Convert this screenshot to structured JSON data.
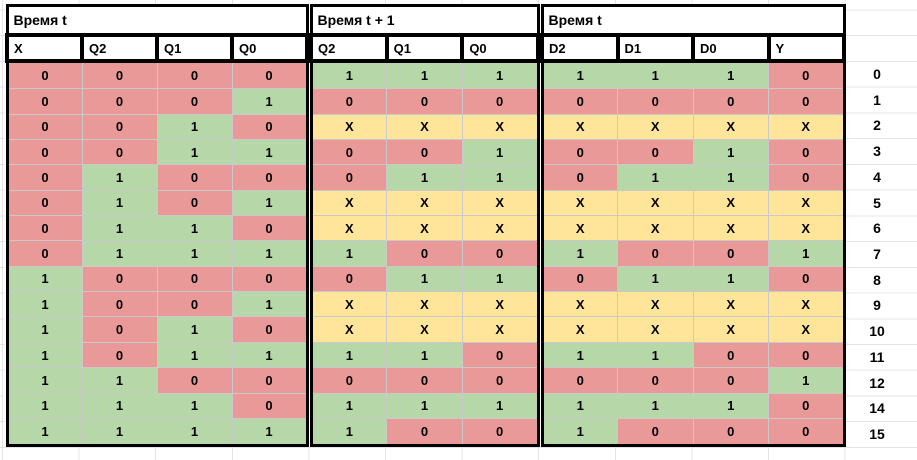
{
  "table": {
    "header_groups": [
      {
        "label": "Время t",
        "columns": [
          "X",
          "Q2",
          "Q1",
          "Q0"
        ]
      },
      {
        "label": "Время t + 1",
        "columns": [
          "Q2",
          "Q1",
          "Q0"
        ]
      },
      {
        "label": "Время t",
        "columns": [
          "D2",
          "D1",
          "D0",
          "Y"
        ]
      }
    ],
    "rows": [
      {
        "t": [
          "0",
          "0",
          "0",
          "0"
        ],
        "t1": [
          "1",
          "1",
          "1"
        ],
        "d": [
          "1",
          "1",
          "1",
          "0"
        ],
        "label": "0"
      },
      {
        "t": [
          "0",
          "0",
          "0",
          "1"
        ],
        "t1": [
          "0",
          "0",
          "0"
        ],
        "d": [
          "0",
          "0",
          "0",
          "0"
        ],
        "label": "1"
      },
      {
        "t": [
          "0",
          "0",
          "1",
          "0"
        ],
        "t1": [
          "X",
          "X",
          "X"
        ],
        "d": [
          "X",
          "X",
          "X",
          "X"
        ],
        "label": "2"
      },
      {
        "t": [
          "0",
          "0",
          "1",
          "1"
        ],
        "t1": [
          "0",
          "0",
          "1"
        ],
        "d": [
          "0",
          "0",
          "1",
          "0"
        ],
        "label": "3"
      },
      {
        "t": [
          "0",
          "1",
          "0",
          "0"
        ],
        "t1": [
          "0",
          "1",
          "1"
        ],
        "d": [
          "0",
          "1",
          "1",
          "0"
        ],
        "label": "4"
      },
      {
        "t": [
          "0",
          "1",
          "0",
          "1"
        ],
        "t1": [
          "X",
          "X",
          "X"
        ],
        "d": [
          "X",
          "X",
          "X",
          "X"
        ],
        "label": "5"
      },
      {
        "t": [
          "0",
          "1",
          "1",
          "0"
        ],
        "t1": [
          "X",
          "X",
          "X"
        ],
        "d": [
          "X",
          "X",
          "X",
          "X"
        ],
        "label": "6"
      },
      {
        "t": [
          "0",
          "1",
          "1",
          "1"
        ],
        "t1": [
          "1",
          "0",
          "0"
        ],
        "d": [
          "1",
          "0",
          "0",
          "1"
        ],
        "label": "7"
      },
      {
        "t": [
          "1",
          "0",
          "0",
          "0"
        ],
        "t1": [
          "0",
          "1",
          "1"
        ],
        "d": [
          "0",
          "1",
          "1",
          "0"
        ],
        "label": "8"
      },
      {
        "t": [
          "1",
          "0",
          "0",
          "1"
        ],
        "t1": [
          "X",
          "X",
          "X"
        ],
        "d": [
          "X",
          "X",
          "X",
          "X"
        ],
        "label": "9"
      },
      {
        "t": [
          "1",
          "0",
          "1",
          "0"
        ],
        "t1": [
          "X",
          "X",
          "X"
        ],
        "d": [
          "X",
          "X",
          "X",
          "X"
        ],
        "label": "10"
      },
      {
        "t": [
          "1",
          "0",
          "1",
          "1"
        ],
        "t1": [
          "1",
          "1",
          "0"
        ],
        "d": [
          "1",
          "1",
          "0",
          "0"
        ],
        "label": "11"
      },
      {
        "t": [
          "1",
          "1",
          "0",
          "0"
        ],
        "t1": [
          "0",
          "0",
          "0"
        ],
        "d": [
          "0",
          "0",
          "0",
          "1"
        ],
        "label": "12"
      },
      {
        "t": [
          "1",
          "1",
          "1",
          "0"
        ],
        "t1": [
          "1",
          "1",
          "1"
        ],
        "d": [
          "1",
          "1",
          "1",
          "0"
        ],
        "label": "14"
      },
      {
        "t": [
          "1",
          "1",
          "1",
          "1"
        ],
        "t1": [
          "1",
          "0",
          "0"
        ],
        "d": [
          "1",
          "0",
          "0",
          "0"
        ],
        "label": "15"
      }
    ],
    "cell_colors": {
      "0": "#ea9999",
      "1": "#b6d7a8",
      "X": "#ffe599",
      "border": "#000000",
      "gridline": "#c9c9c9"
    }
  }
}
